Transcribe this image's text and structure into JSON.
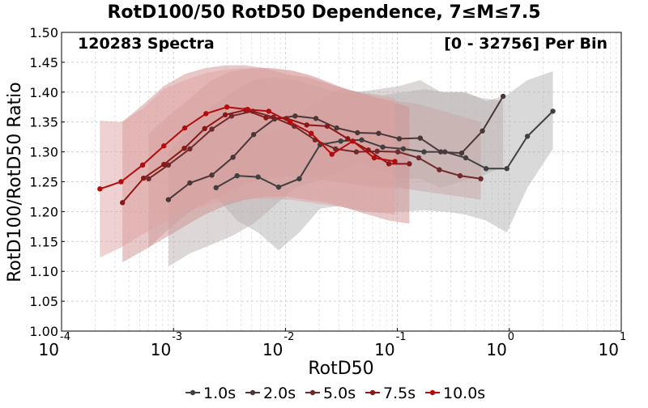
{
  "chart_data": {
    "type": "line",
    "title": "RotD100/50 RotD50 Dependence, 7≤M≤7.5",
    "annotation_left": "120283 Spectra",
    "annotation_right": "[0 - 32756] Per Bin",
    "xlabel": "RotD50",
    "ylabel": "RotD100/RotD50 Ratio",
    "x_scale": "log",
    "xlim": [
      0.0001,
      10
    ],
    "ylim": [
      1.0,
      1.5
    ],
    "x_ticks": [
      {
        "value": 0.0001,
        "base": "10",
        "exp": "-4"
      },
      {
        "value": 0.001,
        "base": "10",
        "exp": "-3"
      },
      {
        "value": 0.01,
        "base": "10",
        "exp": "-2"
      },
      {
        "value": 0.1,
        "base": "10",
        "exp": "-1"
      },
      {
        "value": 1,
        "base": "10",
        "exp": "0"
      },
      {
        "value": 10,
        "base": "10",
        "exp": "1"
      }
    ],
    "y_ticks": [
      "1.00",
      "1.05",
      "1.10",
      "1.15",
      "1.20",
      "1.25",
      "1.30",
      "1.35",
      "1.40",
      "1.45",
      "1.50"
    ],
    "grid": true,
    "legend_position": "bottom",
    "series": [
      {
        "name": "1.0s",
        "color": "#404040",
        "band_color": "#b4b4b4",
        "x": [
          0.0024,
          0.0037,
          0.0057,
          0.0087,
          0.0133,
          0.0204,
          0.0312,
          0.048,
          0.074,
          0.113,
          0.173,
          0.266,
          0.408,
          0.62,
          0.95,
          1.45,
          2.45
        ],
        "y": [
          1.24,
          1.26,
          1.258,
          1.241,
          1.255,
          1.312,
          1.318,
          1.32,
          1.308,
          1.305,
          1.3,
          1.3,
          1.29,
          1.272,
          1.272,
          1.326,
          1.368
        ],
        "band_upper": [
          1.27,
          1.3,
          1.33,
          1.34,
          1.36,
          1.39,
          1.405,
          1.4,
          1.395,
          1.4,
          1.405,
          1.4,
          1.4,
          1.385,
          1.395,
          1.42,
          1.435
        ],
        "band_lower": [
          1.225,
          1.185,
          1.165,
          1.135,
          1.165,
          1.205,
          1.21,
          1.2,
          1.198,
          1.2,
          1.202,
          1.2,
          1.195,
          1.185,
          1.165,
          1.24,
          1.305
        ]
      },
      {
        "name": "2.0s",
        "color": "#4a3838",
        "band_color": "#bbb0b0",
        "x": [
          0.0009,
          0.0014,
          0.0022,
          0.0034,
          0.0052,
          0.008,
          0.0122,
          0.0187,
          0.0287,
          0.044,
          0.068,
          0.104,
          0.16,
          0.244,
          0.375,
          0.575,
          0.88
        ],
        "y": [
          1.22,
          1.248,
          1.261,
          1.291,
          1.329,
          1.355,
          1.36,
          1.356,
          1.34,
          1.332,
          1.331,
          1.322,
          1.323,
          1.3,
          1.298,
          1.335,
          1.393
        ],
        "band_upper": [
          1.3,
          1.34,
          1.375,
          1.4,
          1.42,
          1.425,
          1.42,
          1.41,
          1.4,
          1.4,
          1.405,
          1.41,
          1.42,
          1.4,
          1.4,
          1.39,
          1.385
        ],
        "band_lower": [
          1.108,
          1.13,
          1.145,
          1.16,
          1.18,
          1.21,
          1.24,
          1.25,
          1.265,
          1.28,
          1.27,
          1.255,
          1.255,
          1.24,
          1.25,
          1.26,
          1.275
        ]
      },
      {
        "name": "5.0s",
        "color": "#6e2a2a",
        "band_color": "#c9a5a5",
        "x": [
          0.0006,
          0.0009,
          0.0014,
          0.0022,
          0.0033,
          0.0051,
          0.0078,
          0.012,
          0.0184,
          0.028,
          0.043,
          0.066,
          0.101,
          0.155,
          0.237,
          0.363,
          0.556
        ],
        "y": [
          1.255,
          1.278,
          1.305,
          1.338,
          1.36,
          1.368,
          1.358,
          1.343,
          1.32,
          1.305,
          1.3,
          1.301,
          1.3,
          1.29,
          1.27,
          1.26,
          1.255
        ],
        "band_upper": [
          1.33,
          1.36,
          1.39,
          1.42,
          1.435,
          1.44,
          1.44,
          1.435,
          1.425,
          1.41,
          1.4,
          1.39,
          1.385,
          1.38,
          1.37,
          1.36,
          1.35
        ],
        "band_lower": [
          1.14,
          1.17,
          1.2,
          1.22,
          1.235,
          1.25,
          1.255,
          1.26,
          1.255,
          1.25,
          1.245,
          1.24,
          1.24,
          1.235,
          1.23,
          1.225,
          1.22
        ]
      },
      {
        "name": "7.5s",
        "color": "#8b1818",
        "band_color": "#d09090",
        "x": [
          0.00035,
          0.00054,
          0.00082,
          0.00125,
          0.0019,
          0.0029,
          0.0044,
          0.0067,
          0.0102,
          0.0155,
          0.0236,
          0.036,
          0.055,
          0.084,
          0.128
        ],
        "y": [
          1.215,
          1.256,
          1.279,
          1.306,
          1.339,
          1.362,
          1.37,
          1.357,
          1.356,
          1.345,
          1.343,
          1.322,
          1.303,
          1.28,
          1.28
        ],
        "band_upper": [
          1.35,
          1.38,
          1.41,
          1.43,
          1.44,
          1.445,
          1.445,
          1.44,
          1.43,
          1.425,
          1.415,
          1.405,
          1.395,
          1.385,
          1.375
        ],
        "band_lower": [
          1.115,
          1.135,
          1.155,
          1.175,
          1.195,
          1.21,
          1.22,
          1.225,
          1.225,
          1.22,
          1.215,
          1.205,
          1.195,
          1.185,
          1.18
        ]
      },
      {
        "name": "10.0s",
        "color": "#b40c0c",
        "band_color": "#e0a4a4",
        "x": [
          0.00022,
          0.00034,
          0.00053,
          0.00082,
          0.00126,
          0.00195,
          0.003,
          0.0046,
          0.0071,
          0.011,
          0.017,
          0.026,
          0.04,
          0.062,
          0.095
        ],
        "y": [
          1.238,
          1.25,
          1.278,
          1.31,
          1.34,
          1.364,
          1.375,
          1.371,
          1.368,
          1.35,
          1.331,
          1.296,
          1.318,
          1.29,
          1.284
        ],
        "band_upper": [
          1.352,
          1.35,
          1.372,
          1.405,
          1.42,
          1.432,
          1.438,
          1.44,
          1.44,
          1.437,
          1.428,
          1.415,
          1.4,
          1.395,
          1.39
        ],
        "band_lower": [
          1.123,
          1.14,
          1.162,
          1.182,
          1.2,
          1.21,
          1.218,
          1.222,
          1.222,
          1.22,
          1.215,
          1.21,
          1.205,
          1.2,
          1.195
        ]
      }
    ]
  }
}
